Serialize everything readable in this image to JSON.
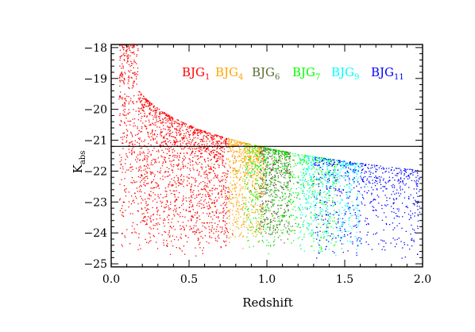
{
  "chart_data": {
    "type": "scatter",
    "xlabel": "Redshift",
    "ylabel": {
      "main": "K",
      "sub": "abs"
    },
    "xlim": [
      0.0,
      2.0
    ],
    "ylim": [
      -25.1,
      -17.9
    ],
    "y_inverted": true,
    "x_ticks": [
      0.0,
      0.5,
      1.0,
      1.5,
      2.0
    ],
    "x_tick_labels": [
      "0.0",
      "0.5",
      "1.0",
      "1.5",
      "2.0"
    ],
    "y_ticks": [
      -18,
      -19,
      -20,
      -21,
      -22,
      -23,
      -24,
      -25
    ],
    "y_tick_labels": [
      "−18",
      "−19",
      "−20",
      "−21",
      "−22",
      "−23",
      "−24",
      "−25"
    ],
    "grid": false,
    "legend_placement": "top-right",
    "reference_line": {
      "y": -21.2,
      "color": "#000000"
    },
    "series": [
      {
        "name": "BJG",
        "sub": "1",
        "color": "#ff0000",
        "x_range": [
          0.05,
          0.75
        ],
        "y_range": [
          -24.8,
          -18.0
        ],
        "points_shown": 2000
      },
      {
        "name": "BJG",
        "sub": "4",
        "color": "#ffa500",
        "x_range": [
          0.75,
          0.98
        ],
        "y_range": [
          -24.5,
          -20.5
        ],
        "points_shown": 700
      },
      {
        "name": "BJG",
        "sub": "6",
        "color": "#556b2f",
        "x_range": [
          0.95,
          1.15
        ],
        "y_range": [
          -24.5,
          -21.0
        ],
        "points_shown": 550
      },
      {
        "name": "BJG",
        "sub": "7",
        "color": "#00ff00",
        "x_range": [
          0.85,
          1.45
        ],
        "y_range": [
          -24.8,
          -21.2
        ],
        "points_shown": 700
      },
      {
        "name": "BJG",
        "sub": "9",
        "color": "#00ffff",
        "x_range": [
          1.2,
          1.6
        ],
        "y_range": [
          -24.8,
          -21.6
        ],
        "points_shown": 500
      },
      {
        "name": "BJG",
        "sub": "11",
        "color": "#0000ff",
        "x_range": [
          1.3,
          1.98
        ],
        "y_range": [
          -25.0,
          -21.9
        ],
        "points_shown": 650
      }
    ]
  }
}
